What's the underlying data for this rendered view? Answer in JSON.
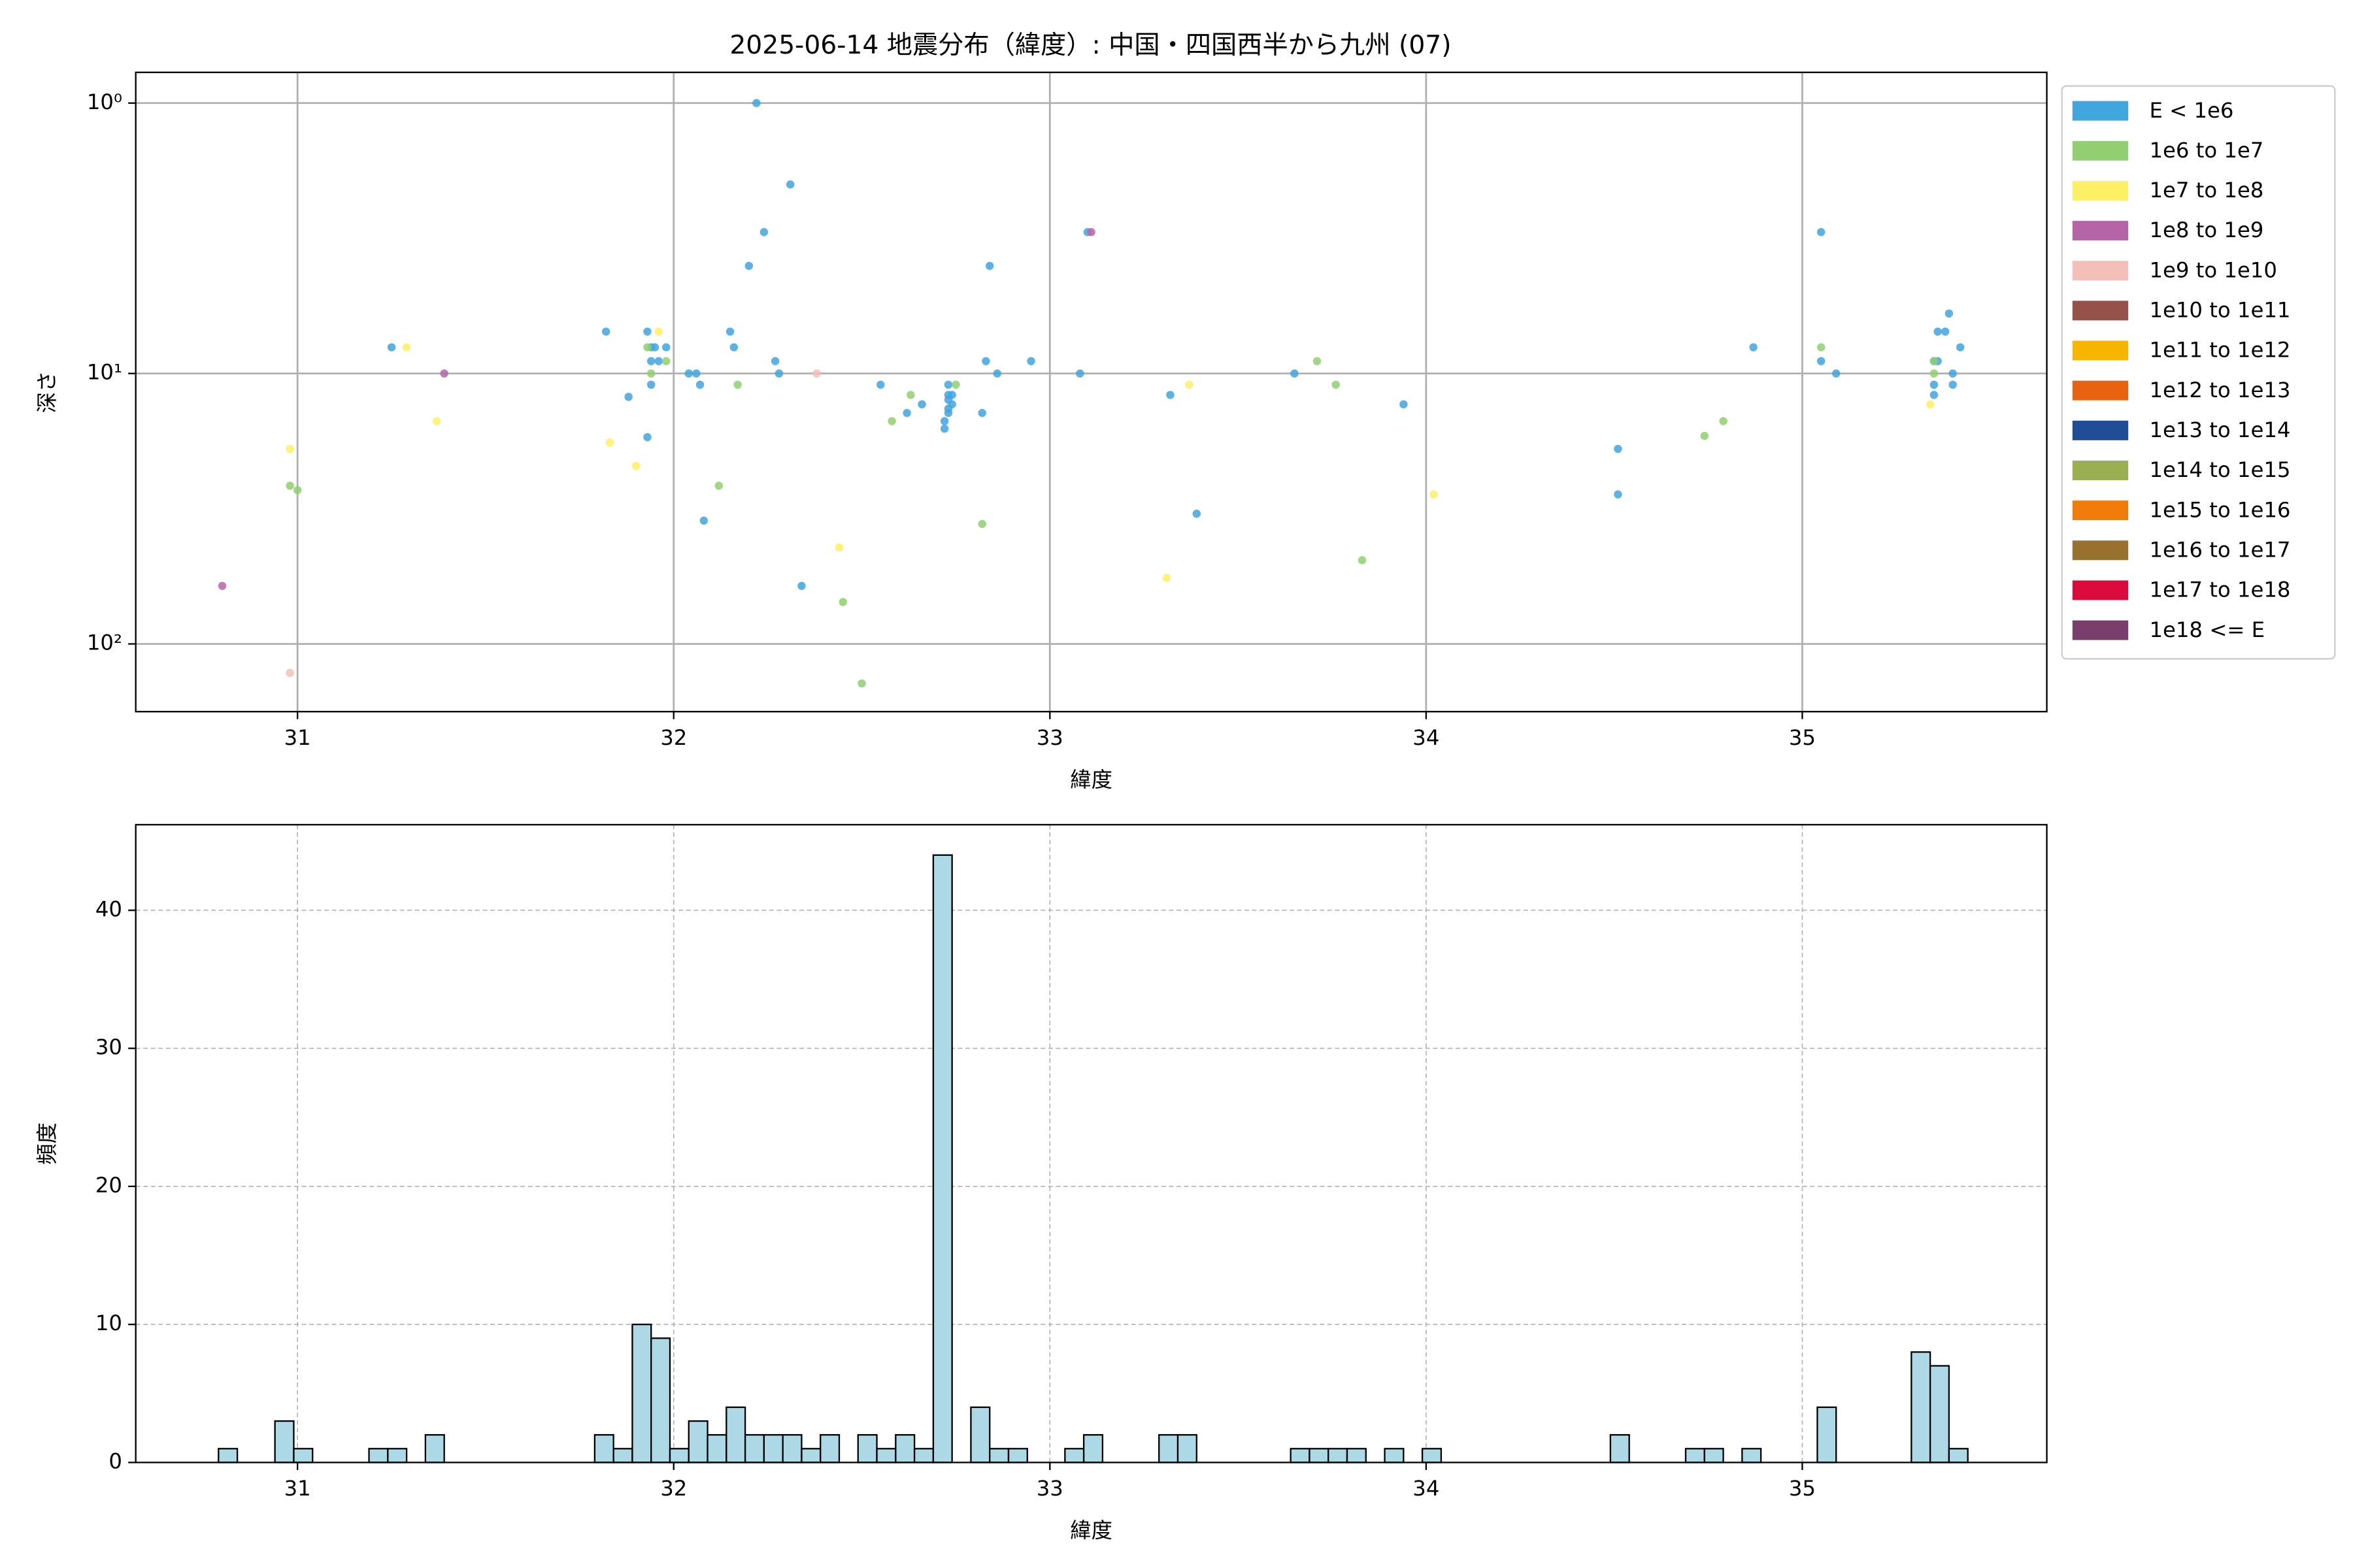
{
  "chart_data": [
    {
      "type": "scatter",
      "title": "2025-06-14 地震分布（緯度）: 中国・四国西半から九州 (07)",
      "x_label": "緯度",
      "y_label": "深さ",
      "xlim": [
        30.57,
        35.65
      ],
      "xticks": [
        31,
        32,
        33,
        34,
        35
      ],
      "ylim": [
        178,
        0.77
      ],
      "yscale": "log",
      "yticks": [
        {
          "value": 1,
          "label": "10⁰"
        },
        {
          "value": 10,
          "label": "10¹"
        },
        {
          "value": 100,
          "label": "10²"
        }
      ],
      "grid": true,
      "grid_linestyle": "solid",
      "legend": "outside right",
      "series": [
        {
          "name": "E < 1e6",
          "color": "#41a5de",
          "x": [
            31.25,
            31.82,
            31.88,
            31.93,
            31.93,
            31.94,
            31.94,
            31.95,
            31.94,
            31.96,
            31.98,
            32.04,
            32.06,
            32.07,
            32.08,
            32.15,
            32.16,
            32.2,
            32.22,
            32.24,
            32.27,
            32.28,
            32.31,
            32.34,
            32.55,
            32.62,
            32.66,
            32.72,
            32.72,
            32.73,
            32.73,
            32.73,
            32.73,
            32.73,
            32.74,
            32.74,
            32.82,
            32.84,
            32.83,
            32.86,
            32.95,
            33.08,
            33.1,
            33.32,
            33.39,
            33.65,
            33.94,
            34.51,
            34.51,
            34.87,
            35.05,
            35.05,
            35.09,
            35.35,
            35.36,
            35.35,
            35.35,
            35.36,
            35.38,
            35.39,
            35.4,
            35.4,
            35.42
          ],
          "values": [
            8,
            7,
            12.2,
            17.2,
            7,
            8,
            9,
            8,
            11,
            9,
            8,
            10,
            10,
            11,
            35,
            7,
            8,
            4,
            1,
            3,
            9,
            10,
            2,
            61,
            11,
            14,
            13,
            16,
            15,
            14,
            12.5,
            12,
            11,
            13.5,
            13,
            12,
            14,
            4,
            9,
            10,
            9,
            10,
            3,
            12,
            33,
            10,
            13,
            19,
            28,
            8,
            3,
            9,
            10,
            9,
            9,
            11,
            12,
            7,
            7,
            6,
            10,
            11,
            8
          ]
        },
        {
          "name": "1e6 to 1e7",
          "color": "#92cf72",
          "x": [
            30.98,
            31.0,
            31.93,
            31.94,
            31.98,
            32.12,
            32.17,
            32.58,
            32.63,
            32.75,
            32.45,
            32.82,
            33.71,
            33.76,
            33.83,
            34.74,
            34.79,
            35.05,
            35.35,
            35.35,
            32.5
          ],
          "values": [
            26,
            27,
            8,
            10,
            9,
            26,
            11,
            15,
            12,
            11,
            70,
            36,
            9,
            11,
            49,
            17,
            15,
            8,
            10,
            9,
            140
          ]
        },
        {
          "name": "1e7 to 1e8",
          "color": "#fef065",
          "x": [
            30.98,
            31.29,
            31.37,
            31.83,
            31.9,
            31.96,
            32.44,
            33.31,
            33.37,
            34.02,
            35.34
          ],
          "values": [
            19,
            8,
            15,
            18,
            22,
            7,
            44,
            57,
            11,
            28,
            13
          ]
        },
        {
          "name": "1e8 to 1e9",
          "color": "#b565a7",
          "x": [
            30.8,
            31.39,
            33.11
          ],
          "values": [
            61,
            10,
            3
          ]
        },
        {
          "name": "1e9 to 1e10",
          "color": "#f4bfb9",
          "x": [
            30.98,
            32.38
          ],
          "values": [
            128,
            10
          ]
        },
        {
          "name": "1e10 to 1e11",
          "color": "#955049",
          "x": [],
          "values": []
        },
        {
          "name": "1e11 to 1e12",
          "color": "#f7b500",
          "x": [],
          "values": []
        },
        {
          "name": "1e12 to 1e13",
          "color": "#e8620f",
          "x": [],
          "values": []
        },
        {
          "name": "1e13 to 1e14",
          "color": "#1f4c96",
          "x": [],
          "values": []
        },
        {
          "name": "1e14 to 1e15",
          "color": "#9aae52",
          "x": [],
          "values": []
        },
        {
          "name": "1e15 to 1e16",
          "color": "#f07c0a",
          "x": [],
          "values": []
        },
        {
          "name": "1e16 to 1e17",
          "color": "#98722d",
          "x": [],
          "values": []
        },
        {
          "name": "1e17 to 1e18",
          "color": "#dc0a3c",
          "x": [],
          "values": []
        },
        {
          "name": "1e18 <= E",
          "color": "#7b3f6e",
          "x": [],
          "values": []
        }
      ]
    },
    {
      "type": "histogram",
      "x_label": "緯度",
      "y_label": "頻度",
      "color": "#add8e6",
      "xlim": [
        30.57,
        35.65
      ],
      "xticks": [
        31,
        32,
        33,
        34,
        35
      ],
      "ylim": [
        0,
        46.2
      ],
      "yticks": [
        0,
        10,
        20,
        30,
        40
      ],
      "grid": true,
      "grid_linestyle": "dashed",
      "bins": [
        30.79,
        30.84,
        30.89,
        30.94,
        30.99,
        31.04,
        31.09,
        31.14,
        31.19,
        31.24,
        31.29,
        31.34,
        31.39,
        31.44,
        31.49,
        31.54,
        31.59,
        31.64,
        31.69,
        31.74,
        31.79,
        31.84,
        31.89,
        31.94,
        31.99,
        32.04,
        32.09,
        32.14,
        32.19,
        32.24,
        32.29,
        32.34,
        32.39,
        32.44,
        32.49,
        32.54,
        32.59,
        32.64,
        32.69,
        32.74,
        32.79,
        32.84,
        32.89,
        32.94,
        32.99,
        33.04,
        33.09,
        33.14,
        33.19,
        33.24,
        33.29,
        33.34,
        33.39,
        33.44,
        33.49,
        33.54,
        33.59,
        33.64,
        33.69,
        33.74,
        33.79,
        33.84,
        33.89,
        33.94,
        33.99,
        34.04,
        34.09,
        34.14,
        34.19,
        34.24,
        34.29,
        34.34,
        34.39,
        34.44,
        34.49,
        34.54,
        34.59,
        34.64,
        34.69,
        34.74,
        34.79,
        34.84,
        34.89,
        34.94,
        34.99,
        35.04,
        35.09,
        35.14,
        35.19,
        35.24,
        35.29,
        35.34,
        35.39,
        35.44
      ],
      "values": [
        1,
        0,
        0,
        3,
        1,
        0,
        0,
        0,
        1,
        1,
        0,
        2,
        0,
        0,
        0,
        0,
        0,
        0,
        0,
        0,
        2,
        1,
        10,
        9,
        1,
        3,
        2,
        4,
        2,
        2,
        2,
        1,
        2,
        0,
        2,
        1,
        2,
        1,
        44,
        0,
        4,
        1,
        1,
        0,
        0,
        1,
        2,
        0,
        0,
        0,
        2,
        2,
        0,
        0,
        0,
        0,
        0,
        1,
        1,
        1,
        1,
        0,
        1,
        0,
        1,
        0,
        0,
        0,
        0,
        0,
        0,
        0,
        0,
        0,
        2,
        0,
        0,
        0,
        1,
        1,
        0,
        1,
        0,
        0,
        0,
        4,
        0,
        0,
        0,
        0,
        8,
        7,
        1
      ]
    }
  ]
}
